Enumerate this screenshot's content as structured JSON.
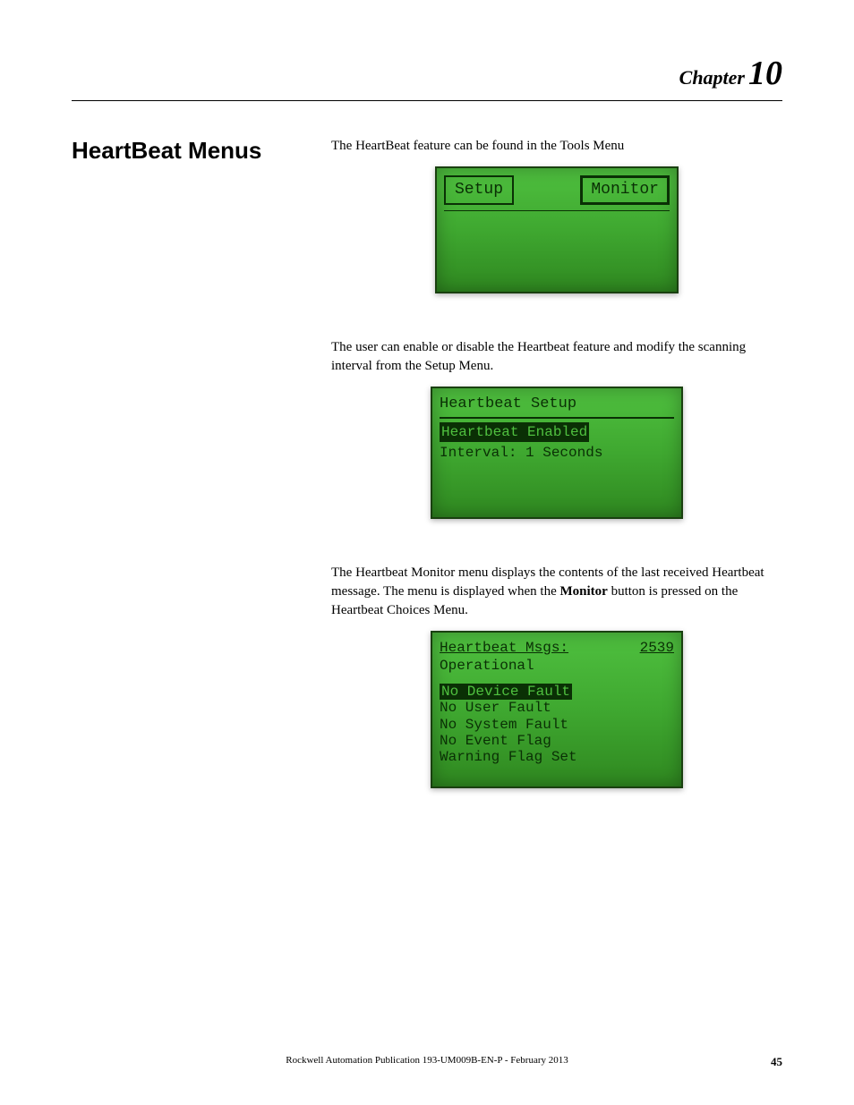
{
  "chapter": {
    "label": "Chapter",
    "number": "10"
  },
  "section": {
    "title": "HeartBeat Menus"
  },
  "paragraphs": {
    "p1": "The HeartBeat feature can be found in the Tools Menu",
    "p2": "The user can enable or disable the Heartbeat feature and modify the scanning interval from the Setup Menu.",
    "p3_a": "The Heartbeat Monitor menu displays the contents of the last received Heartbeat message. The menu is displayed when the ",
    "p3_bold": "Monitor",
    "p3_b": " button is pressed on the Heartbeat Choices Menu."
  },
  "lcd1": {
    "button_setup": "Setup",
    "button_monitor": "Monitor"
  },
  "lcd2": {
    "title": "Heartbeat Setup",
    "row1": "Heartbeat Enabled",
    "row2": "Interval:   1 Seconds"
  },
  "lcd3": {
    "header_label": "Heartbeat Msgs:",
    "header_count": "2539",
    "status": "Operational",
    "line1": "No Device Fault",
    "line2": "No User Fault",
    "line3": "No System Fault",
    "line4": "No Event Flag",
    "line5": "Warning Flag Set"
  },
  "footer": {
    "publication": "Rockwell Automation Publication 193-UM009B-EN-P - February 2013",
    "page": "45"
  },
  "colors": {
    "lcd_bg_top": "#4fc03f",
    "lcd_bg_bottom": "#2f8820",
    "lcd_text": "#0a3005",
    "page_bg": "#ffffff",
    "text": "#000000"
  }
}
